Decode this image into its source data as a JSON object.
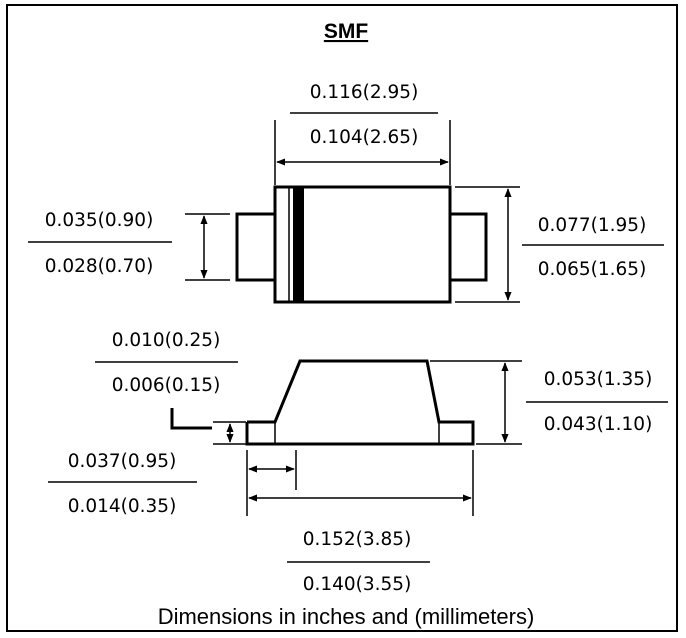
{
  "title": "SMF",
  "caption": "Dimensions in inches and (millimeters)",
  "dimensions": {
    "top_width": {
      "max": "0.116(2.95)",
      "min": "0.104(2.65)"
    },
    "lead_height": {
      "max": "0.035(0.90)",
      "min": "0.028(0.70)"
    },
    "body_height": {
      "max": "0.077(1.95)",
      "min": "0.065(1.65)"
    },
    "lead_thickness": {
      "max": "0.010(0.25)",
      "min": "0.006(0.15)"
    },
    "side_height": {
      "max": "0.053(1.35)",
      "min": "0.043(1.10)"
    },
    "lead_length": {
      "max": "0.037(0.95)",
      "min": "0.014(0.35)"
    },
    "overall_length": {
      "max": "0.152(3.85)",
      "min": "0.140(3.55)"
    }
  }
}
